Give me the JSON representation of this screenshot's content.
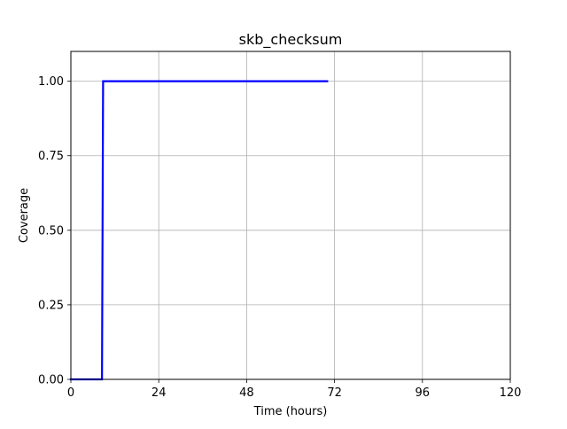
{
  "chart_data": {
    "type": "line",
    "title": "skb_checksum",
    "xlabel": "Time (hours)",
    "ylabel": "Coverage",
    "xlim": [
      0,
      120
    ],
    "ylim": [
      0,
      1.1
    ],
    "xticks": [
      0,
      24,
      48,
      72,
      96,
      120
    ],
    "xtick_labels": [
      "0",
      "24",
      "48",
      "72",
      "96",
      "120"
    ],
    "yticks": [
      0,
      0.25,
      0.5,
      0.75,
      1.0
    ],
    "ytick_labels": [
      "0.00",
      "0.25",
      "0.50",
      "0.75",
      "1.00"
    ],
    "grid": true,
    "series": [
      {
        "color": "#0000ff",
        "x": [
          0,
          8.5,
          8.8,
          70
        ],
        "y": [
          0,
          0,
          1.0,
          1.0
        ]
      }
    ]
  }
}
